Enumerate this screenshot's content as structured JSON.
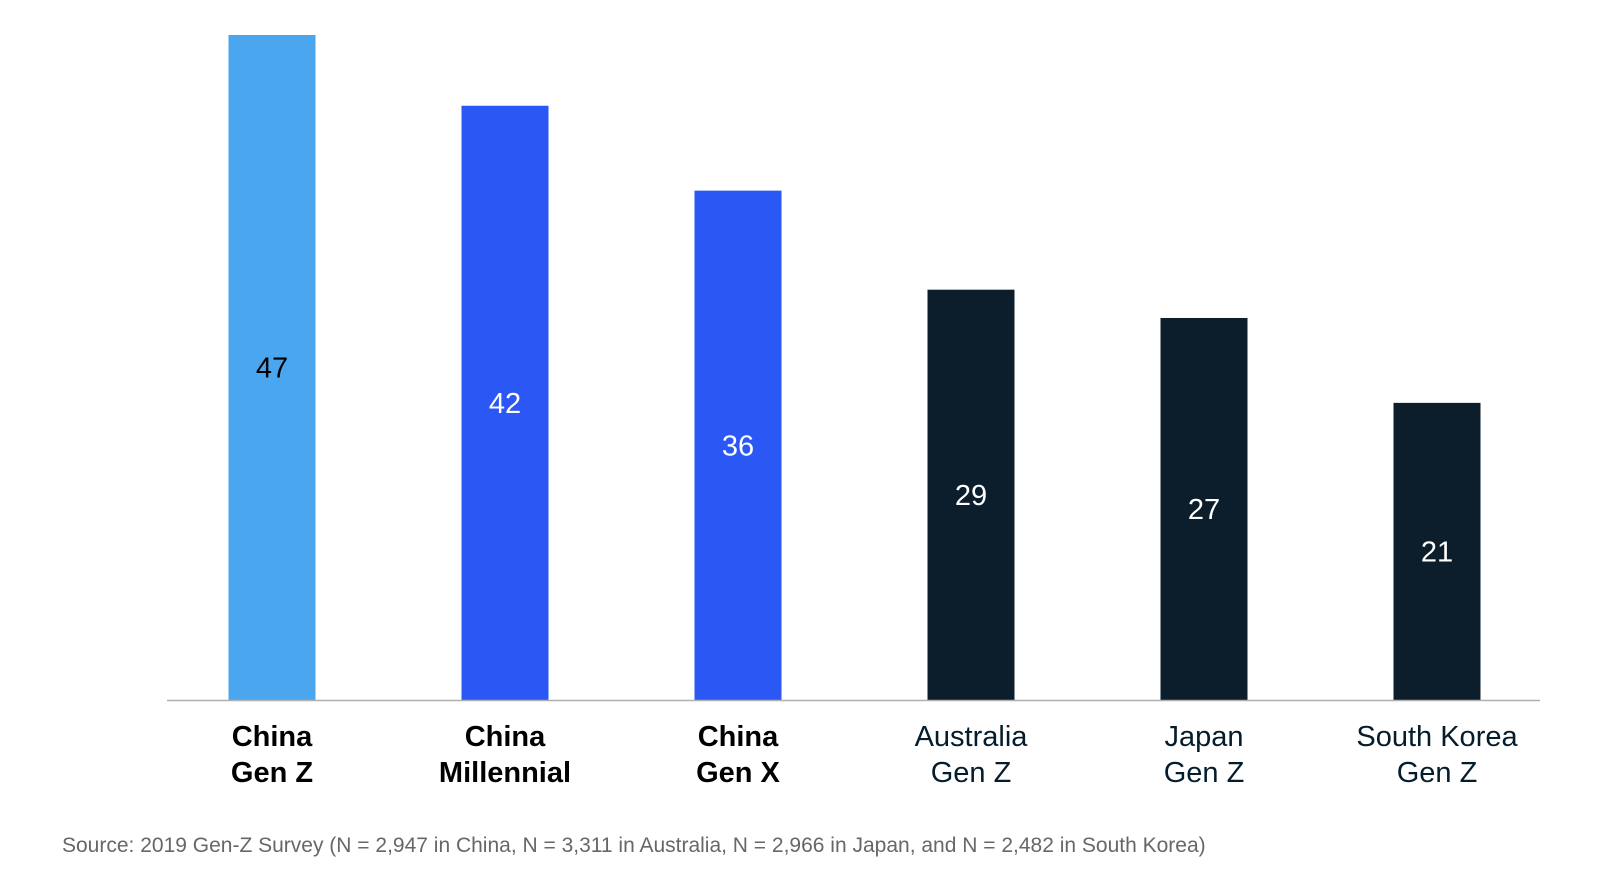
{
  "chart_data": {
    "type": "bar",
    "categories": [
      {
        "lines": [
          "China",
          "Gen Z"
        ],
        "bold": true
      },
      {
        "lines": [
          "China",
          "Millennial"
        ],
        "bold": true
      },
      {
        "lines": [
          "China",
          "Gen X"
        ],
        "bold": true
      },
      {
        "lines": [
          "Australia",
          "Gen Z"
        ],
        "bold": false
      },
      {
        "lines": [
          "Japan",
          "Gen Z"
        ],
        "bold": false
      },
      {
        "lines": [
          "South Korea",
          "Gen Z"
        ],
        "bold": false
      }
    ],
    "values": [
      47,
      42,
      36,
      29,
      27,
      21
    ],
    "bar_colors": [
      "#4aa7ef",
      "#2b57f5",
      "#2b57f5",
      "#0c1e2c",
      "#0c1e2c",
      "#0c1e2c"
    ],
    "value_label_colors": [
      "#000000",
      "#ffffff",
      "#ffffff",
      "#ffffff",
      "#ffffff",
      "#ffffff"
    ],
    "baseline_color": "#b0b0b0",
    "ylim": [
      0,
      47
    ],
    "grid": false,
    "legend": "none",
    "source": "Source: 2019 Gen-Z Survey (N = 2,947 in China, N = 3,311 in Australia, N = 2,966 in Japan, and N = 2,482 in South Korea)"
  }
}
